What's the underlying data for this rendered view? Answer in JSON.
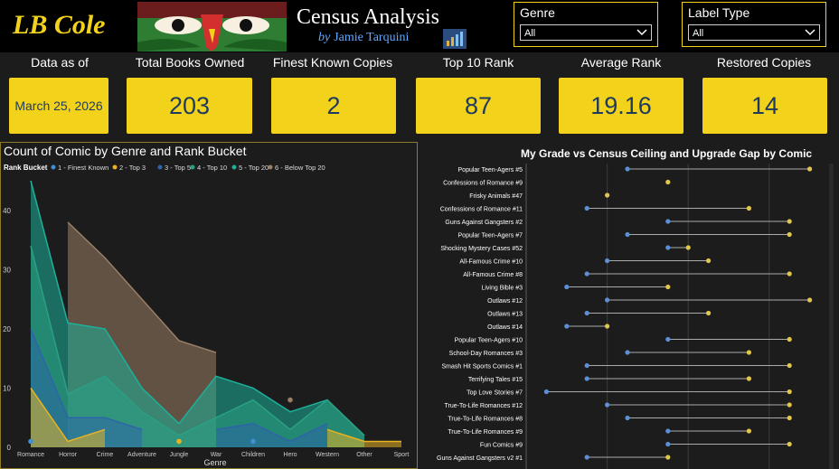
{
  "header": {
    "logo_text": "LB Cole",
    "title": "Census Analysis",
    "byline_prefix": "by",
    "byline_name": "Jamie Tarquini"
  },
  "slicers": {
    "genre": {
      "label": "Genre",
      "value": "All"
    },
    "label_type": {
      "label": "Label Type",
      "value": "All"
    }
  },
  "kpis": [
    {
      "label": "Data as of",
      "value": "March 25, 2026"
    },
    {
      "label": "Total Books Owned",
      "value": "203"
    },
    {
      "label": "Finest Known Copies",
      "value": "2"
    },
    {
      "label": "Top 10 Rank",
      "value": "87"
    },
    {
      "label": "Average Rank",
      "value": "19.16"
    },
    {
      "label": "Restored Copies",
      "value": "14"
    }
  ],
  "colors": {
    "accent": "#f2d21a",
    "rank1": "#3f8fd2",
    "rank2": "#e8b323",
    "rank3": "#2e64a8",
    "rank4": "#2aa084",
    "rank5": "#1eb09a",
    "rank6": "#9a7f66"
  },
  "chart_data": [
    {
      "type": "area",
      "title": "Count of Comic by Genre and Rank Bucket",
      "legend_title": "Rank Bucket",
      "legend_position": "top-left",
      "xlabel": "Genre",
      "ylabel": "",
      "ylim": [
        0,
        45
      ],
      "yticks": [
        0,
        10,
        20,
        30,
        40
      ],
      "categories": [
        "Romance",
        "Horror",
        "Crime",
        "Adventure",
        "Jungle",
        "War",
        "Children",
        "Hero",
        "Western",
        "Other",
        "Sport"
      ],
      "series": [
        {
          "name": "1 - Finest Known",
          "values": [
            1,
            null,
            null,
            null,
            null,
            null,
            1,
            null,
            null,
            null,
            null
          ]
        },
        {
          "name": "2 - Top 3",
          "values": [
            10,
            1,
            3,
            null,
            1,
            null,
            null,
            null,
            3,
            1,
            1
          ]
        },
        {
          "name": "3 - Top 5",
          "values": [
            20,
            5,
            5,
            3,
            null,
            3,
            4,
            1,
            4,
            null,
            null
          ]
        },
        {
          "name": "4 - Top 10",
          "values": [
            34,
            9,
            12,
            6,
            2,
            5,
            8,
            3,
            8,
            2,
            null
          ]
        },
        {
          "name": "5 - Top 20",
          "values": [
            45,
            21,
            20,
            10,
            4,
            12,
            10,
            6,
            8,
            2,
            null
          ]
        },
        {
          "name": "6 - Below Top 20",
          "values": [
            null,
            38,
            32,
            25,
            18,
            16,
            null,
            8,
            null,
            null,
            null
          ]
        }
      ]
    },
    {
      "type": "scatter",
      "title": "My Grade vs Census Ceiling and Upgrade Gap by Comic",
      "legend_position": "none",
      "categories": [
        "Popular Teen-Agers #5",
        "Confessions of Romance #9",
        "Frisky Animals #47",
        "Confessions of Romance #11",
        "Guns Against Gangsters #2",
        "Popular Teen-Agers #7",
        "Shocking Mystery Cases #52",
        "All-Famous Crime #10",
        "All-Famous Crime #8",
        "Living Bible #3",
        "Outlaws #12",
        "Outlaws #13",
        "Outlaws #14",
        "Popular Teen-Agers #10",
        "School-Day Romances #3",
        "Smash Hit Sports Comics #1",
        "Terrifying Tales #15",
        "Top Love Stories #7",
        "True-To-Life Romances #12",
        "True-To-Life Romances #8",
        "True-To-Life Romances #9",
        "Fun Comics #9",
        "Guns Against Gangsters v2 #1"
      ],
      "series": [
        {
          "name": "My Grade",
          "values": [
            5.0,
            null,
            null,
            4.0,
            6.0,
            5.0,
            6.0,
            4.5,
            4.0,
            3.5,
            4.5,
            4.0,
            3.5,
            6.0,
            5.0,
            4.0,
            4.0,
            3.0,
            4.5,
            5.0,
            6.0,
            6.0,
            4.0
          ]
        },
        {
          "name": "Census Ceiling",
          "values": [
            9.5,
            6.0,
            4.5,
            8.0,
            9.0,
            9.0,
            6.5,
            7.0,
            9.0,
            6.0,
            9.5,
            7.0,
            4.5,
            9.0,
            8.0,
            9.0,
            8.0,
            9.0,
            9.0,
            9.0,
            8.0,
            9.0,
            6.0
          ]
        }
      ]
    }
  ]
}
